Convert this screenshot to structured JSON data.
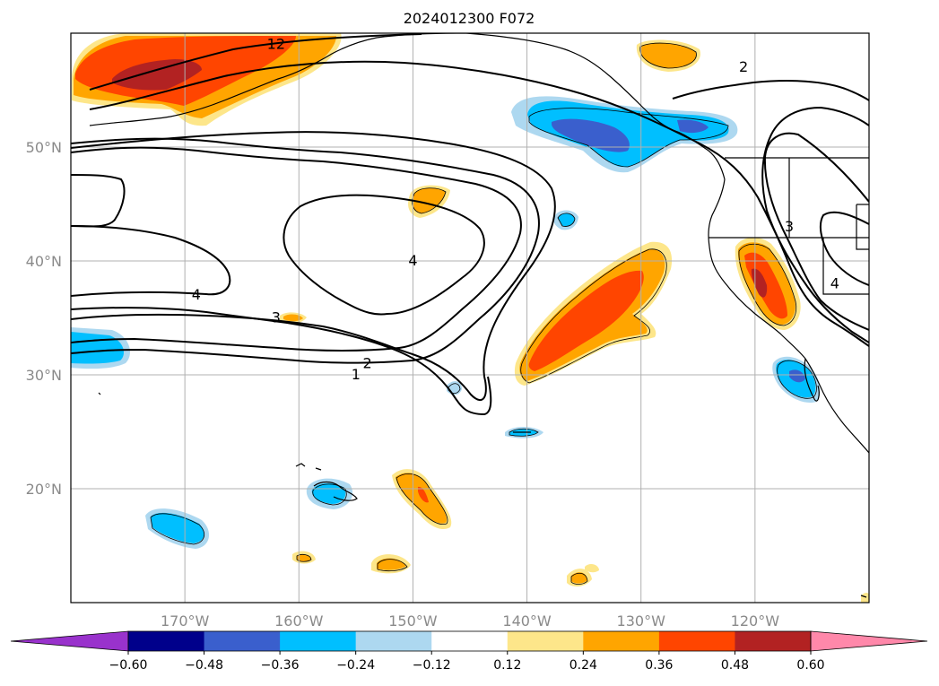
{
  "chart_data": {
    "type": "heatmap",
    "title": "2024012300 F072",
    "map": {
      "lon_range": [
        -180,
        -110
      ],
      "lat_range": [
        10,
        60
      ],
      "grid": true,
      "x_ticks": [
        {
          "lon": -170,
          "label": "170°W"
        },
        {
          "lon": -160,
          "label": "160°W"
        },
        {
          "lon": -150,
          "label": "150°W"
        },
        {
          "lon": -140,
          "label": "140°W"
        },
        {
          "lon": -130,
          "label": "130°W"
        },
        {
          "lon": -120,
          "label": "120°W"
        }
      ],
      "y_ticks": [
        {
          "lat": 20,
          "label": "20°N"
        },
        {
          "lat": 30,
          "label": "30°N"
        },
        {
          "lat": 40,
          "label": "40°N"
        },
        {
          "lat": 50,
          "label": "50°N"
        }
      ]
    },
    "colorbar": {
      "levels": [
        -0.6,
        -0.48,
        -0.36,
        -0.24,
        -0.12,
        0.12,
        0.24,
        0.36,
        0.48,
        0.6
      ],
      "tick_labels": [
        "−0.60",
        "−0.48",
        "−0.36",
        "−0.24",
        "−0.12",
        "0.12",
        "0.24",
        "0.36",
        "0.48",
        "0.60"
      ],
      "colors": [
        "#9932cc",
        "#00008b",
        "#3a5fcd",
        "#00bfff",
        "#add8f0",
        "#ffffff",
        "#fde68a",
        "#ffa500",
        "#ff4500",
        "#b22222",
        "#ff88aa"
      ],
      "extend": "both"
    },
    "contour_labels": [
      {
        "text": "4",
        "lon": -150,
        "lat": 40
      },
      {
        "text": "4",
        "lon": -169,
        "lat": 37
      },
      {
        "text": "3",
        "lon": -162,
        "lat": 35
      },
      {
        "text": "2",
        "lon": -154,
        "lat": 31
      },
      {
        "text": "1",
        "lon": -155,
        "lat": 30
      },
      {
        "text": "2",
        "lon": -121,
        "lat": 57
      },
      {
        "text": "3",
        "lon": -117,
        "lat": 43
      },
      {
        "text": "4",
        "lon": -113,
        "lat": 38
      },
      {
        "text": "12",
        "lon": -162,
        "lat": 59
      }
    ]
  }
}
